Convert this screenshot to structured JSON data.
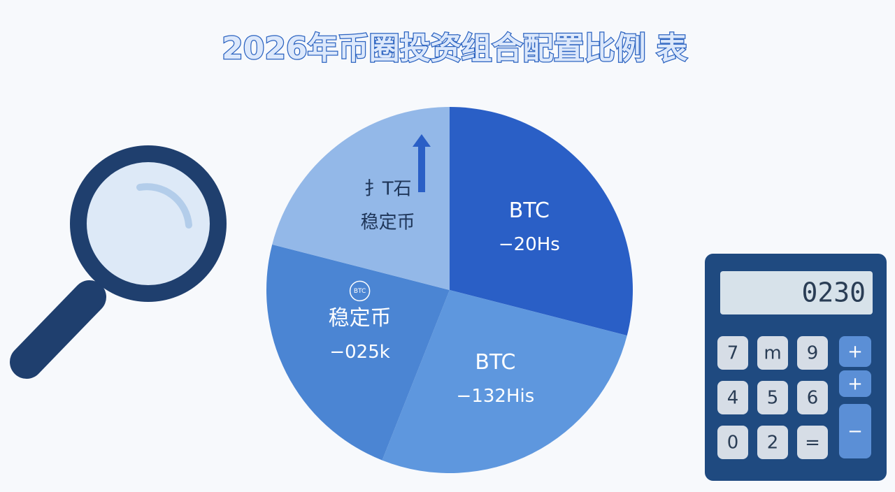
{
  "chart_data": {
    "type": "pie",
    "title": "2026年币圈投资组合配置比例 表",
    "categories": [
      "BTC",
      "BTC",
      "稳定币",
      "稳定币"
    ],
    "values": [
      29,
      27,
      23,
      21
    ],
    "slice_notes": [
      "−20Hs",
      "−132His",
      "−025k",
      "扌T石"
    ],
    "icon_label": "BTC",
    "colors": [
      "#2a5fc6",
      "#5e97de",
      "#4b85d3",
      "#93b8e8"
    ]
  },
  "calculator": {
    "display": "0230",
    "keys": [
      "7",
      "m",
      "9",
      "+",
      "4",
      "5",
      "6",
      "+",
      "0",
      "2",
      "=",
      "−"
    ]
  }
}
